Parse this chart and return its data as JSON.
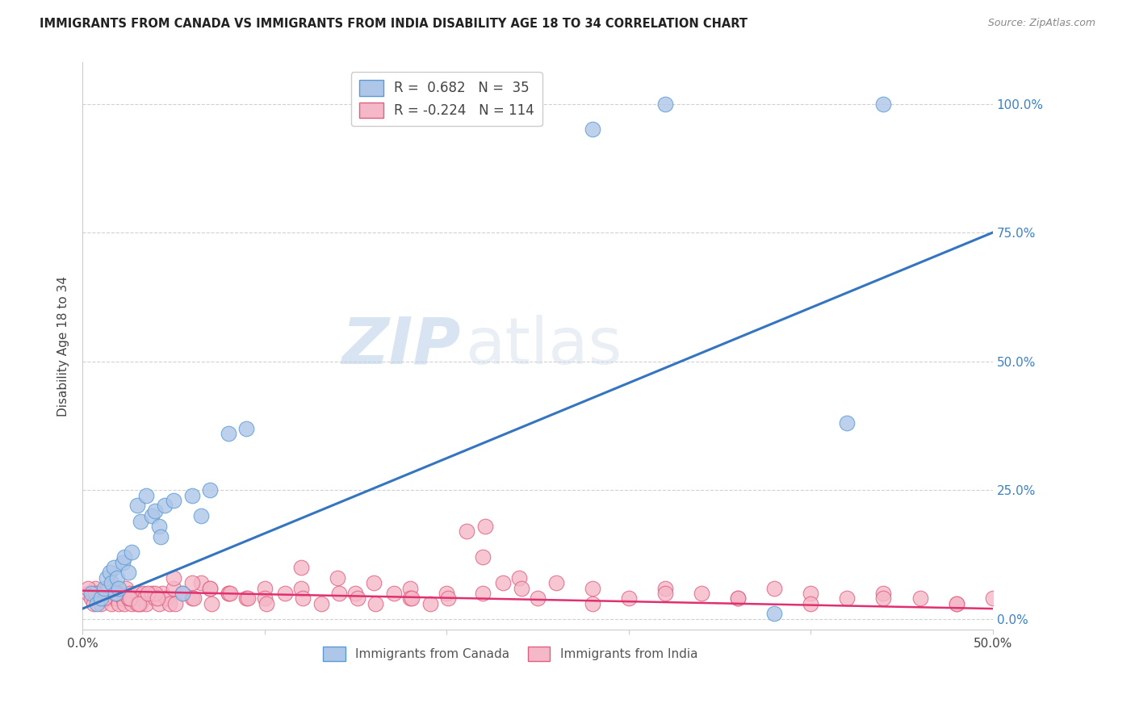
{
  "title": "IMMIGRANTS FROM CANADA VS IMMIGRANTS FROM INDIA DISABILITY AGE 18 TO 34 CORRELATION CHART",
  "source": "Source: ZipAtlas.com",
  "ylabel": "Disability Age 18 to 34",
  "ytick_labels": [
    "0.0%",
    "25.0%",
    "50.0%",
    "75.0%",
    "100.0%"
  ],
  "ytick_values": [
    0,
    0.25,
    0.5,
    0.75,
    1.0
  ],
  "xlim": [
    0,
    0.5
  ],
  "ylim": [
    -0.02,
    1.08
  ],
  "canada_face_color": "#aec6e8",
  "canada_edge_color": "#5b9bd5",
  "india_face_color": "#f4b8c8",
  "india_edge_color": "#e06080",
  "canada_line_color": "#3575c0",
  "india_line_color": "#e03070",
  "canada_R": 0.682,
  "canada_N": 35,
  "india_R": -0.224,
  "india_N": 114,
  "legend_label_canada": "Immigrants from Canada",
  "legend_label_india": "Immigrants from India",
  "watermark_zip": "ZIP",
  "watermark_atlas": "atlas",
  "canada_line_x0": 0.0,
  "canada_line_y0": 0.02,
  "canada_line_x1": 0.5,
  "canada_line_y1": 0.75,
  "india_line_x0": 0.0,
  "india_line_y0": 0.055,
  "india_line_x1": 0.5,
  "india_line_y1": 0.02,
  "canada_scatter_x": [
    0.005,
    0.008,
    0.01,
    0.012,
    0.013,
    0.015,
    0.016,
    0.017,
    0.018,
    0.019,
    0.02,
    0.022,
    0.023,
    0.025,
    0.027,
    0.03,
    0.032,
    0.035,
    0.038,
    0.04,
    0.042,
    0.043,
    0.045,
    0.05,
    0.055,
    0.06,
    0.065,
    0.07,
    0.08,
    0.09,
    0.28,
    0.32,
    0.38,
    0.42,
    0.44
  ],
  "canada_scatter_y": [
    0.05,
    0.03,
    0.04,
    0.06,
    0.08,
    0.09,
    0.07,
    0.1,
    0.05,
    0.08,
    0.06,
    0.11,
    0.12,
    0.09,
    0.13,
    0.22,
    0.19,
    0.24,
    0.2,
    0.21,
    0.18,
    0.16,
    0.22,
    0.23,
    0.05,
    0.24,
    0.2,
    0.25,
    0.36,
    0.37,
    0.95,
    1.0,
    0.01,
    0.38,
    1.0
  ],
  "india_scatter_x": [
    0.003,
    0.005,
    0.006,
    0.007,
    0.008,
    0.009,
    0.01,
    0.011,
    0.012,
    0.013,
    0.014,
    0.015,
    0.016,
    0.017,
    0.018,
    0.019,
    0.02,
    0.021,
    0.022,
    0.023,
    0.024,
    0.025,
    0.026,
    0.027,
    0.028,
    0.03,
    0.031,
    0.032,
    0.033,
    0.034,
    0.035,
    0.038,
    0.04,
    0.042,
    0.044,
    0.046,
    0.048,
    0.05,
    0.055,
    0.06,
    0.065,
    0.07,
    0.08,
    0.09,
    0.1,
    0.12,
    0.14,
    0.16,
    0.18,
    0.2,
    0.22,
    0.24,
    0.26,
    0.28,
    0.3,
    0.32,
    0.34,
    0.36,
    0.38,
    0.4,
    0.42,
    0.44,
    0.46,
    0.48,
    0.5,
    0.003,
    0.007,
    0.012,
    0.018,
    0.025,
    0.03,
    0.04,
    0.05,
    0.06,
    0.07,
    0.08,
    0.1,
    0.12,
    0.15,
    0.18,
    0.22,
    0.25,
    0.28,
    0.32,
    0.36,
    0.4,
    0.44,
    0.48,
    0.014,
    0.019,
    0.026,
    0.031,
    0.036,
    0.041,
    0.051,
    0.061,
    0.071,
    0.081,
    0.091,
    0.101,
    0.111,
    0.121,
    0.131,
    0.141,
    0.151,
    0.161,
    0.171,
    0.181,
    0.191,
    0.201,
    0.211,
    0.221,
    0.231,
    0.241
  ],
  "india_scatter_y": [
    0.05,
    0.04,
    0.03,
    0.06,
    0.05,
    0.04,
    0.03,
    0.05,
    0.04,
    0.06,
    0.05,
    0.04,
    0.03,
    0.05,
    0.04,
    0.06,
    0.03,
    0.05,
    0.04,
    0.03,
    0.06,
    0.04,
    0.05,
    0.03,
    0.04,
    0.05,
    0.04,
    0.03,
    0.05,
    0.04,
    0.03,
    0.05,
    0.04,
    0.03,
    0.05,
    0.04,
    0.03,
    0.06,
    0.05,
    0.04,
    0.07,
    0.06,
    0.05,
    0.04,
    0.06,
    0.1,
    0.08,
    0.07,
    0.06,
    0.05,
    0.12,
    0.08,
    0.07,
    0.06,
    0.04,
    0.06,
    0.05,
    0.04,
    0.06,
    0.05,
    0.04,
    0.05,
    0.04,
    0.03,
    0.04,
    0.06,
    0.05,
    0.04,
    0.05,
    0.04,
    0.03,
    0.05,
    0.08,
    0.07,
    0.06,
    0.05,
    0.04,
    0.06,
    0.05,
    0.04,
    0.05,
    0.04,
    0.03,
    0.05,
    0.04,
    0.03,
    0.04,
    0.03,
    0.06,
    0.05,
    0.04,
    0.03,
    0.05,
    0.04,
    0.03,
    0.04,
    0.03,
    0.05,
    0.04,
    0.03,
    0.05,
    0.04,
    0.03,
    0.05,
    0.04,
    0.03,
    0.05,
    0.04,
    0.03,
    0.04,
    0.17,
    0.18,
    0.07,
    0.06
  ]
}
